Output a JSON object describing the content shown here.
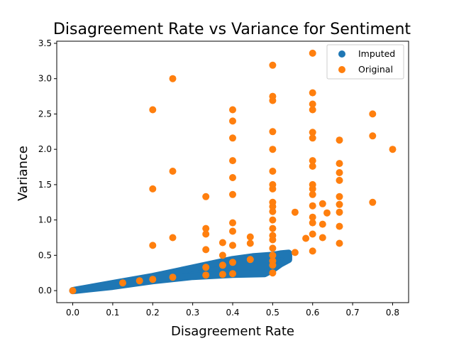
{
  "chart_data": {
    "type": "scatter",
    "title": "Disagreement Rate vs Variance for Sentiment",
    "xlabel": "Disagreement Rate",
    "ylabel": "Variance",
    "xlim": [
      -0.04,
      0.84
    ],
    "ylim": [
      -0.17,
      3.53
    ],
    "xticks": [
      "0.0",
      "0.1",
      "0.2",
      "0.3",
      "0.4",
      "0.5",
      "0.6",
      "0.7",
      "0.8"
    ],
    "yticks": [
      "0.0",
      "0.5",
      "1.0",
      "1.5",
      "2.0",
      "2.5",
      "3.0",
      "3.5"
    ],
    "legend_position": "top-right",
    "grid": false,
    "series": [
      {
        "name": "Imputed",
        "color": "#1f77b4",
        "band": {
          "upper": [
            [
              0.0,
              0.0
            ],
            [
              0.1,
              0.1
            ],
            [
              0.2,
              0.2
            ],
            [
              0.3,
              0.32
            ],
            [
              0.4,
              0.44
            ],
            [
              0.45,
              0.48
            ],
            [
              0.5,
              0.5
            ],
            [
              0.52,
              0.52
            ],
            [
              0.54,
              0.53
            ]
          ],
          "lower": [
            [
              0.54,
              0.44
            ],
            [
              0.52,
              0.38
            ],
            [
              0.5,
              0.3
            ],
            [
              0.48,
              0.24
            ],
            [
              0.4,
              0.23
            ],
            [
              0.3,
              0.2
            ],
            [
              0.2,
              0.14
            ],
            [
              0.1,
              0.06
            ],
            [
              0.0,
              0.0
            ]
          ]
        }
      },
      {
        "name": "Original",
        "color": "#ff7f0e",
        "points": [
          [
            0.0,
            0.0
          ],
          [
            0.125,
            0.11
          ],
          [
            0.167,
            0.14
          ],
          [
            0.2,
            0.16
          ],
          [
            0.2,
            0.64
          ],
          [
            0.2,
            1.44
          ],
          [
            0.2,
            2.56
          ],
          [
            0.25,
            0.19
          ],
          [
            0.25,
            0.75
          ],
          [
            0.25,
            1.69
          ],
          [
            0.25,
            3.0
          ],
          [
            0.333,
            0.22
          ],
          [
            0.333,
            0.33
          ],
          [
            0.333,
            0.58
          ],
          [
            0.333,
            0.8
          ],
          [
            0.333,
            0.88
          ],
          [
            0.333,
            1.33
          ],
          [
            0.375,
            0.23
          ],
          [
            0.375,
            0.36
          ],
          [
            0.375,
            0.5
          ],
          [
            0.375,
            0.68
          ],
          [
            0.4,
            0.24
          ],
          [
            0.4,
            0.4
          ],
          [
            0.4,
            0.64
          ],
          [
            0.4,
            0.84
          ],
          [
            0.4,
            0.96
          ],
          [
            0.4,
            1.36
          ],
          [
            0.4,
            1.6
          ],
          [
            0.4,
            1.84
          ],
          [
            0.4,
            2.16
          ],
          [
            0.4,
            2.4
          ],
          [
            0.4,
            2.56
          ],
          [
            0.444,
            0.44
          ],
          [
            0.444,
            0.67
          ],
          [
            0.444,
            0.76
          ],
          [
            0.5,
            0.25
          ],
          [
            0.5,
            0.36
          ],
          [
            0.5,
            0.42
          ],
          [
            0.5,
            0.5
          ],
          [
            0.5,
            0.6
          ],
          [
            0.5,
            0.72
          ],
          [
            0.5,
            0.78
          ],
          [
            0.5,
            0.88
          ],
          [
            0.5,
            1.0
          ],
          [
            0.5,
            1.12
          ],
          [
            0.5,
            1.19
          ],
          [
            0.5,
            1.25
          ],
          [
            0.5,
            1.44
          ],
          [
            0.5,
            1.5
          ],
          [
            0.5,
            1.69
          ],
          [
            0.5,
            2.0
          ],
          [
            0.5,
            2.25
          ],
          [
            0.5,
            2.69
          ],
          [
            0.5,
            2.75
          ],
          [
            0.5,
            3.19
          ],
          [
            0.556,
            0.54
          ],
          [
            0.556,
            1.11
          ],
          [
            0.583,
            0.74
          ],
          [
            0.6,
            0.56
          ],
          [
            0.6,
            0.8
          ],
          [
            0.6,
            0.96
          ],
          [
            0.6,
            1.04
          ],
          [
            0.6,
            1.2
          ],
          [
            0.6,
            1.36
          ],
          [
            0.6,
            1.44
          ],
          [
            0.6,
            1.5
          ],
          [
            0.6,
            1.76
          ],
          [
            0.6,
            1.84
          ],
          [
            0.6,
            2.16
          ],
          [
            0.6,
            2.24
          ],
          [
            0.6,
            2.56
          ],
          [
            0.6,
            2.64
          ],
          [
            0.6,
            2.8
          ],
          [
            0.6,
            3.36
          ],
          [
            0.625,
            0.75
          ],
          [
            0.625,
            0.94
          ],
          [
            0.625,
            1.23
          ],
          [
            0.636,
            1.1
          ],
          [
            0.667,
            0.67
          ],
          [
            0.667,
            0.91
          ],
          [
            0.667,
            1.11
          ],
          [
            0.667,
            1.22
          ],
          [
            0.667,
            1.33
          ],
          [
            0.667,
            1.56
          ],
          [
            0.667,
            1.67
          ],
          [
            0.667,
            1.8
          ],
          [
            0.667,
            2.13
          ],
          [
            0.75,
            1.25
          ],
          [
            0.75,
            2.19
          ],
          [
            0.75,
            2.5
          ],
          [
            0.8,
            2.0
          ]
        ]
      }
    ]
  }
}
